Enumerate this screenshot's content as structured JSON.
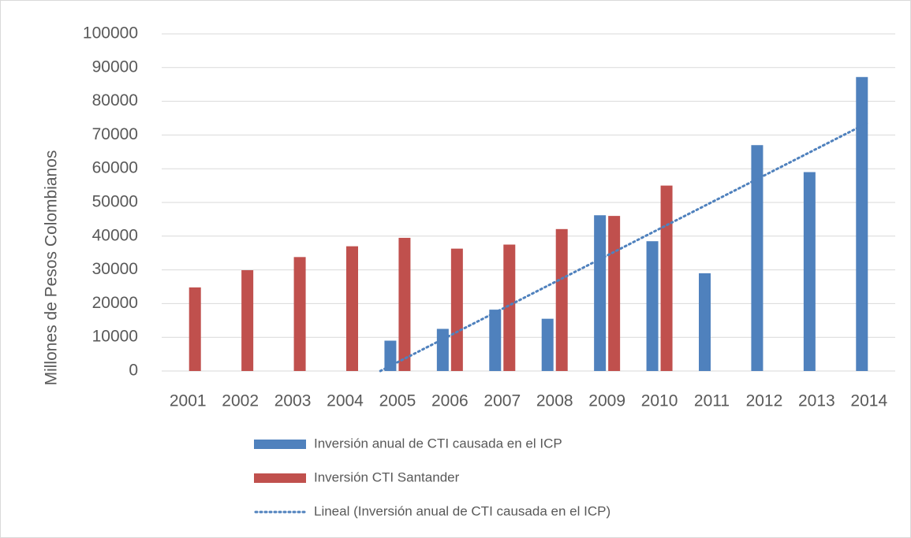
{
  "chart_data": {
    "type": "bar",
    "y_label": "Millones de Pesos Colombianos",
    "categories": [
      "2001",
      "2002",
      "2003",
      "2004",
      "2005",
      "2006",
      "2007",
      "2008",
      "2009",
      "2010",
      "2011",
      "2012",
      "2013",
      "2014"
    ],
    "series": [
      {
        "name": "Inversión anual de CTI causada en el ICP",
        "color": "#4f81bd",
        "values": [
          null,
          null,
          null,
          null,
          9000,
          12500,
          18200,
          15500,
          46200,
          38500,
          29000,
          67000,
          59000,
          87200
        ]
      },
      {
        "name": "Inversión CTI Santander",
        "color": "#c0504d",
        "values": [
          24800,
          29900,
          33800,
          37000,
          39500,
          36300,
          37500,
          42100,
          46000,
          55000,
          null,
          null,
          null,
          null
        ]
      }
    ],
    "trendline": {
      "name": "Lineal (Inversión anual de CTI causada en el ICP)",
      "color": "#4f81bd",
      "kind": "linear"
    },
    "ylim": [
      0,
      100000
    ],
    "yticks": [
      0,
      10000,
      20000,
      30000,
      40000,
      50000,
      60000,
      70000,
      80000,
      90000,
      100000
    ],
    "grid": true
  }
}
